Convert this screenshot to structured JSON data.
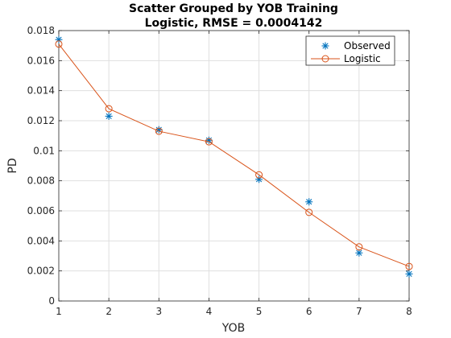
{
  "chart_data": {
    "type": "scatter",
    "title": [
      "Scatter Grouped by YOB Training",
      "Logistic, RMSE = 0.0004142"
    ],
    "xlabel": "YOB",
    "ylabel": "PD",
    "xlim": [
      1,
      8
    ],
    "ylim": [
      0,
      0.018
    ],
    "x_ticks": [
      1,
      2,
      3,
      4,
      5,
      6,
      7,
      8
    ],
    "x_tick_labels": [
      "1",
      "2",
      "3",
      "4",
      "5",
      "6",
      "7",
      "8"
    ],
    "y_ticks": [
      0,
      0.002,
      0.004,
      0.006,
      0.008,
      0.01,
      0.012,
      0.014,
      0.016,
      0.018
    ],
    "y_tick_labels": [
      "0",
      "0.002",
      "0.004",
      "0.006",
      "0.008",
      "0.01",
      "0.012",
      "0.014",
      "0.016",
      "0.018"
    ],
    "grid": true,
    "legend_position": "top-right",
    "series": [
      {
        "name": "Observed",
        "marker": "asterisk",
        "color": "#0072BD",
        "line": false,
        "x": [
          1,
          2,
          3,
          4,
          5,
          6,
          7,
          8
        ],
        "y": [
          0.0174,
          0.0123,
          0.0114,
          0.0107,
          0.0081,
          0.0066,
          0.0032,
          0.0018
        ]
      },
      {
        "name": "Logistic",
        "marker": "circle",
        "color": "#D95319",
        "line": true,
        "x": [
          1,
          2,
          3,
          4,
          5,
          6,
          7,
          8
        ],
        "y": [
          0.0171,
          0.0128,
          0.0113,
          0.0106,
          0.0084,
          0.0059,
          0.0036,
          0.0023
        ]
      }
    ]
  }
}
